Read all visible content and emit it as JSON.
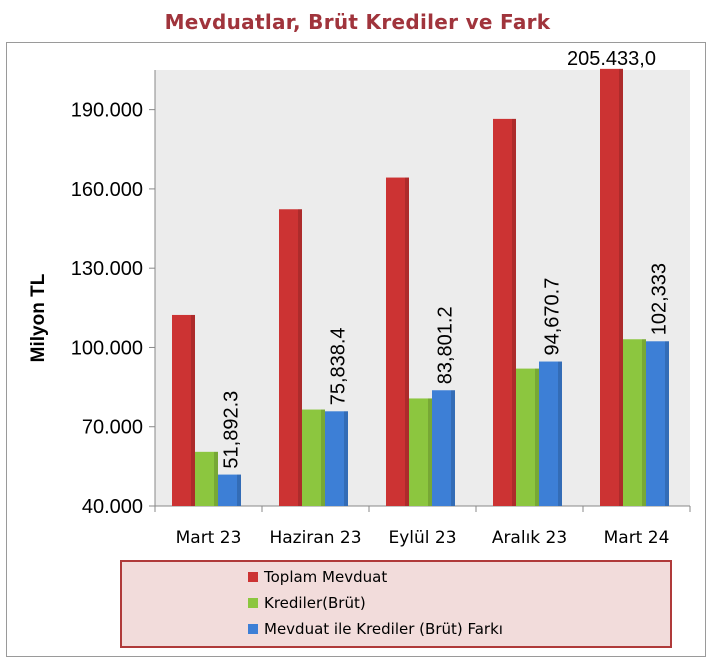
{
  "chart_data": {
    "type": "bar",
    "title": "Mevduatlar, Brüt Krediler ve Fark",
    "ylabel": "Milyon TL",
    "xlabel": "",
    "ylim": [
      40000,
      205000
    ],
    "y_ticks": [
      "40.000",
      "70.000",
      "100.000",
      "130.000",
      "160.000",
      "190.000"
    ],
    "y_tick_values": [
      40000,
      70000,
      100000,
      130000,
      160000,
      190000
    ],
    "categories": [
      "Mart 23",
      "Haziran 23",
      "Eylül 23",
      "Aralık 23",
      "Mart 24"
    ],
    "series": [
      {
        "name": "Toplam Mevduat",
        "color": "#cc3333",
        "values": [
          112300,
          152300,
          164300,
          186500,
          205433.0
        ],
        "labels": [
          "",
          "",
          "",
          "",
          "205.433,0"
        ]
      },
      {
        "name": "Krediler(Brüt)",
        "color": "#8cc63f",
        "values": [
          60500,
          76500,
          80700,
          92000,
          103100
        ],
        "labels": [
          "",
          "",
          "",
          "",
          ""
        ]
      },
      {
        "name": "Mevduat ile Krediler (Brüt) Farkı",
        "color": "#3d7fd6",
        "values": [
          51892.3,
          75838.4,
          83801.2,
          94670.7,
          102333
        ],
        "labels": [
          "51,892.3",
          "75,838.4",
          "83,801.2",
          "94,670.7",
          "102,333"
        ]
      }
    ],
    "legend_position": "bottom",
    "grid": false
  }
}
